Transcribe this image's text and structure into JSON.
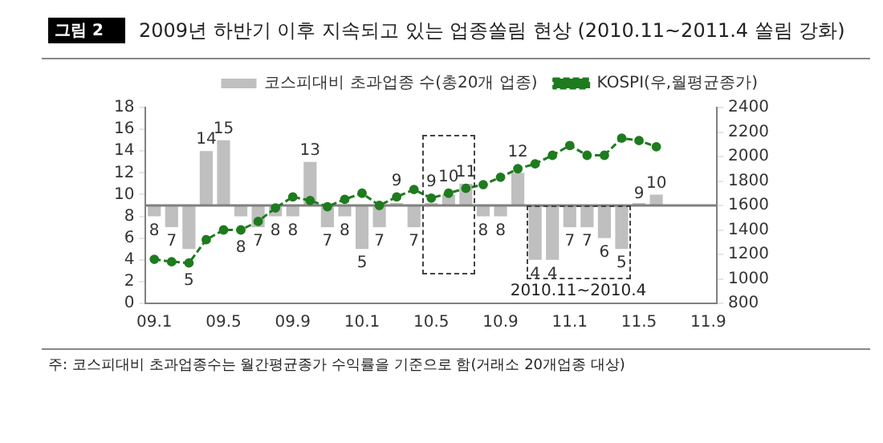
{
  "chart_data": {
    "type": "bar",
    "title": "2009년 하반기 이후 지속되고 있는 업종쏠림 현상 (2010.11~2011.4 쏠림 강화)",
    "categories": [
      "09.1",
      null,
      null,
      null,
      "09.5",
      null,
      null,
      null,
      "09.9",
      null,
      null,
      null,
      "10.1",
      null,
      null,
      null,
      "10.5",
      null,
      null,
      null,
      "10.9",
      null,
      null,
      null,
      "11.1",
      null,
      null,
      null,
      "11.5",
      null,
      null,
      null,
      "11.9"
    ],
    "series": [
      {
        "name": "코스피대비 초과업종 수(총20개 업종)",
        "type": "bar",
        "color": "#bfbfbf",
        "base": [
          9,
          9,
          9,
          9,
          9,
          9,
          9,
          9,
          9,
          9,
          9,
          9,
          9,
          9,
          9,
          9,
          9,
          9,
          9,
          9,
          9,
          9,
          9,
          9,
          9,
          9,
          9,
          9,
          9,
          9,
          null,
          null,
          null
        ],
        "values": [
          -1,
          -2,
          -4,
          5,
          6,
          -1,
          -2,
          -1,
          -1,
          4,
          -2,
          -1,
          -4,
          -2,
          0,
          -2,
          0,
          1,
          2,
          -1,
          -1,
          3,
          -5,
          -5,
          -2,
          -2,
          -3,
          -4,
          0,
          1,
          null,
          null,
          null
        ],
        "value_labels": [
          "8",
          "7",
          "5",
          "14",
          "15",
          "8",
          "7",
          "8",
          "8",
          "13",
          "7",
          "8",
          "5",
          "7",
          "9",
          "7",
          "9",
          "10",
          "11",
          "8",
          "8",
          "12",
          "4",
          "4",
          "7",
          "7",
          "6",
          "5",
          "9",
          "10",
          null,
          null,
          null
        ]
      },
      {
        "name": "KOSPI(우,월평균종가)",
        "type": "line",
        "axis": "y2",
        "color": "#1e7b1e",
        "marker": "circle",
        "line_style": "dashed",
        "values": [
          1160,
          1140,
          1130,
          1320,
          1400,
          1400,
          1470,
          1580,
          1670,
          1640,
          1590,
          1650,
          1700,
          1600,
          1670,
          1730,
          1660,
          1700,
          1740,
          1770,
          1830,
          1900,
          1940,
          2010,
          2090,
          2010,
          2010,
          2150,
          2130,
          2080,
          null,
          null,
          null
        ]
      }
    ],
    "ylim": [
      0,
      18
    ],
    "yticks": [
      0,
      2,
      4,
      6,
      8,
      10,
      12,
      14,
      16,
      18
    ],
    "y2lim": [
      800,
      2400
    ],
    "y2ticks": [
      800,
      1000,
      1200,
      1400,
      1600,
      1800,
      2000,
      2200,
      2400
    ],
    "ref_lines": [
      {
        "axis": "y",
        "value": 9,
        "color": "#808080"
      }
    ],
    "grid": false,
    "legend": "top",
    "annotations": [
      "그림 2",
      "2010.11~2010.4",
      "주: 코스피대비 초과업종수는 월간평균종가 수익률을 기준으로 함(거래소 20개업종 대상)"
    ]
  }
}
